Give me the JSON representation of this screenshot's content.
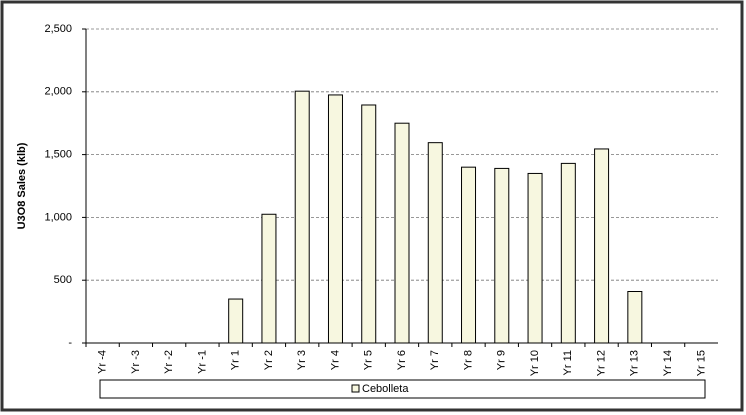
{
  "chart_data": {
    "type": "bar",
    "y_label": "U3O8 Sales (klb)",
    "categories": [
      "Yr -4",
      "Yr -3",
      "Yr -2",
      "Yr -1",
      "Yr 1",
      "Yr 2",
      "Yr 3",
      "Yr 4",
      "Yr 5",
      "Yr 6",
      "Yr 7",
      "Yr 8",
      "Yr 9",
      "Yr 10",
      "Yr 11",
      "Yr 12",
      "Yr 13",
      "Yr 14",
      "Yr 15"
    ],
    "series": [
      {
        "name": "Cebolleta",
        "color": "#f7f7e0",
        "values": [
          0,
          0,
          0,
          0,
          350,
          1025,
          2005,
          1975,
          1895,
          1750,
          1595,
          1400,
          1390,
          1350,
          1430,
          1545,
          410,
          0,
          0
        ]
      }
    ],
    "ylim": [
      0,
      2500
    ],
    "yticks": [
      {
        "value": 0,
        "label": "-"
      },
      500,
      {
        "value": 1000,
        "label": "1,000"
      },
      {
        "value": 1500,
        "label": "1,500"
      },
      {
        "value": 2000,
        "label": "2,000"
      },
      {
        "value": 2500,
        "label": "2,500"
      }
    ],
    "grid": true
  }
}
